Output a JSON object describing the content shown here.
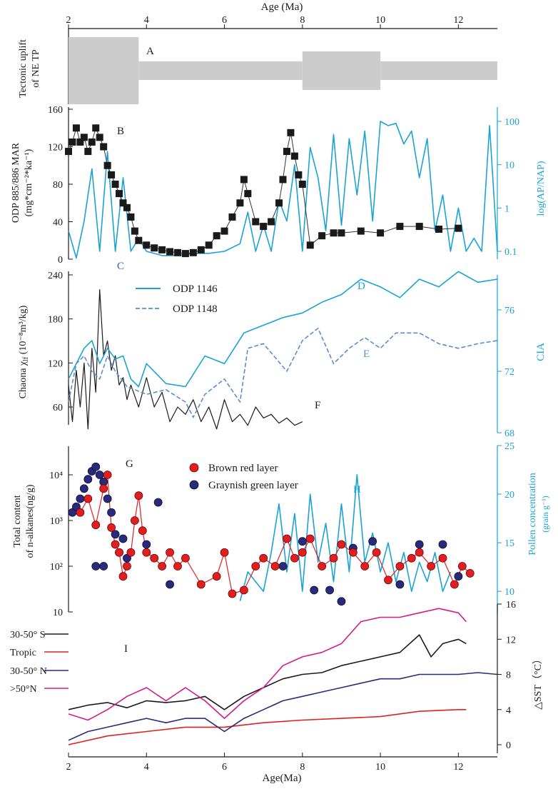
{
  "chart_data": [
    {
      "id": "A",
      "type": "area",
      "ylabel": "Tectonic uplift of NE TP",
      "top_axis": {
        "title": "Age (Ma)",
        "ticks": [
          2,
          4,
          6,
          8,
          10,
          12
        ]
      },
      "panel_label": "A",
      "blocks": [
        {
          "x0": 2.0,
          "x1": 3.8,
          "level": "high"
        },
        {
          "x0": 3.8,
          "x1": 8.0,
          "level": "low"
        },
        {
          "x0": 8.0,
          "x1": 10.0,
          "level": "mid"
        },
        {
          "x0": 10.0,
          "x1": 13.0,
          "level": "low"
        }
      ],
      "colors": {
        "fill": "#cccccc",
        "stroke": "#1a1a1a"
      }
    },
    {
      "id": "B",
      "type": "line",
      "ylabel_lines": [
        "ODP 885/886 MAR",
        "(mg*cm⁻²*ka⁻¹)"
      ],
      "yticks": [
        0,
        40,
        80,
        120,
        160
      ],
      "y2label": "log(AP/NAP)",
      "y2ticks": [
        "0.1",
        "1",
        "10",
        "100"
      ],
      "labels": {
        "B": "B",
        "C": "C"
      },
      "series": [
        {
          "name": "ODP 885/886 MAR",
          "color": "#1a1a1a",
          "marker": "square",
          "x": [
            2.0,
            2.1,
            2.2,
            2.3,
            2.4,
            2.5,
            2.6,
            2.7,
            2.8,
            2.9,
            3.0,
            3.1,
            3.2,
            3.3,
            3.4,
            3.5,
            3.6,
            3.7,
            3.8,
            4.0,
            4.2,
            4.4,
            4.6,
            4.8,
            5.0,
            5.2,
            5.4,
            5.6,
            5.8,
            6.0,
            6.2,
            6.4,
            6.5,
            6.6,
            6.8,
            7.0,
            7.2,
            7.4,
            7.5,
            7.6,
            7.7,
            7.8,
            7.9,
            8.0,
            8.2,
            8.5,
            8.8,
            9.0,
            9.5,
            10.0,
            10.5,
            11.0,
            11.5,
            12.0
          ],
          "values": [
            115,
            125,
            140,
            125,
            130,
            115,
            125,
            140,
            130,
            120,
            100,
            90,
            80,
            70,
            60,
            55,
            45,
            30,
            20,
            15,
            12,
            10,
            8,
            7,
            6,
            7,
            10,
            15,
            25,
            30,
            45,
            60,
            85,
            70,
            40,
            35,
            40,
            60,
            85,
            115,
            135,
            110,
            90,
            80,
            15,
            25,
            28,
            28,
            30,
            28,
            35,
            35,
            32,
            33
          ]
        },
        {
          "name": "log(AP/NAP)",
          "color": "#1aa3d4",
          "x": [
            2.0,
            2.2,
            2.4,
            2.6,
            2.8,
            3.0,
            3.2,
            3.4,
            3.6,
            3.8,
            4.0,
            4.4,
            4.8,
            5.2,
            5.6,
            6.0,
            6.4,
            6.6,
            6.8,
            7.0,
            7.2,
            7.4,
            7.6,
            7.8,
            8.0,
            8.2,
            8.4,
            8.6,
            8.8,
            9.0,
            9.2,
            9.4,
            9.6,
            9.8,
            10.0,
            10.2,
            10.4,
            10.6,
            10.8,
            11.0,
            11.2,
            11.4,
            11.6,
            11.8,
            12.0,
            12.2,
            12.4,
            12.6,
            12.8,
            13.0
          ],
          "values": [
            0.3,
            0.07,
            0.5,
            8,
            0.1,
            20,
            0.1,
            5,
            0.1,
            0.2,
            0.1,
            0.08,
            0.08,
            0.09,
            0.09,
            0.1,
            0.15,
            0.8,
            0.1,
            0.4,
            0.1,
            1.5,
            0.5,
            10,
            0.1,
            25,
            5,
            0.3,
            50,
            0.4,
            40,
            2,
            60,
            0.5,
            100,
            80,
            90,
            30,
            60,
            5,
            40,
            0.3,
            2,
            0.1,
            1,
            0.1,
            0.2,
            0.1,
            80,
            0.1
          ]
        }
      ]
    },
    {
      "id": "DEF",
      "type": "line",
      "ylabel": "Chaona χlf (10⁻⁸m³/kg)",
      "ylabel_main": "Chaona χ",
      "ylabel_sub": "lf",
      "ylabel_rest": " (10⁻⁸m³/kg)",
      "yticks": [
        60,
        120,
        180,
        240
      ],
      "y2label": "CIA",
      "y2ticks": [
        68,
        72,
        76
      ],
      "legend": [
        "ODP 1146",
        "ODP 1148"
      ],
      "labels": {
        "D": "D",
        "E": "E",
        "F": "F"
      },
      "series": [
        {
          "name": "ODP 1146",
          "color": "#1aa3d4",
          "axis": "right",
          "x": [
            2.0,
            2.2,
            2.4,
            2.6,
            2.8,
            3.0,
            3.2,
            3.4,
            3.6,
            3.8,
            4.0,
            4.5,
            5.0,
            5.5,
            6.0,
            6.5,
            7.0,
            7.5,
            8.0,
            8.5,
            9.0,
            9.5,
            10.0,
            10.5,
            11.0,
            11.5,
            12.0,
            12.5,
            13.0
          ],
          "values": [
            71.5,
            72.5,
            73.5,
            74.0,
            72.5,
            73.5,
            72.8,
            73.0,
            71.5,
            71.0,
            72.5,
            71.2,
            71.0,
            73.0,
            72.5,
            74.5,
            75.0,
            75.5,
            75.8,
            76.5,
            77.0,
            78.0,
            77.5,
            76.8,
            78.0,
            77.5,
            78.5,
            77.8,
            78.0
          ]
        },
        {
          "name": "ODP 1148",
          "color": "#5a8ecb",
          "axis": "right",
          "dash": true,
          "x": [
            2.0,
            2.2,
            2.4,
            2.6,
            2.8,
            3.0,
            3.2,
            3.5,
            4.0,
            4.5,
            5.0,
            5.2,
            5.5,
            6.0,
            6.4,
            6.6,
            7.0,
            7.6,
            8.0,
            8.4,
            8.8,
            9.2,
            9.6,
            10.0,
            10.4,
            11.0,
            11.5,
            12.0,
            12.5,
            13.0
          ],
          "values": [
            70.0,
            72.5,
            73.0,
            72.0,
            71.5,
            73.0,
            72.0,
            71.0,
            70.5,
            70.8,
            70.0,
            69.0,
            70.5,
            71.5,
            70.0,
            73.5,
            73.8,
            72.0,
            74.0,
            74.8,
            72.5,
            73.5,
            74.2,
            73.5,
            74.5,
            74.5,
            73.8,
            73.5,
            73.8,
            74.0
          ]
        },
        {
          "name": "Chaona χlf",
          "color": "#1a1a1a",
          "axis": "left",
          "x": [
            2.0,
            2.1,
            2.2,
            2.3,
            2.4,
            2.5,
            2.6,
            2.7,
            2.8,
            2.9,
            3.0,
            3.1,
            3.2,
            3.3,
            3.4,
            3.5,
            3.6,
            3.8,
            4.0,
            4.2,
            4.4,
            4.6,
            4.8,
            5.0,
            5.2,
            5.4,
            5.6,
            5.8,
            6.0,
            6.2,
            6.4,
            6.6,
            6.8,
            7.0,
            7.2,
            7.4,
            7.6,
            7.8,
            8.0
          ],
          "values": [
            90,
            40,
            110,
            60,
            120,
            30,
            140,
            80,
            220,
            130,
            150,
            110,
            130,
            90,
            100,
            70,
            90,
            60,
            100,
            60,
            80,
            40,
            60,
            50,
            70,
            40,
            60,
            30,
            70,
            40,
            50,
            35,
            60,
            45,
            50,
            38,
            45,
            35,
            40
          ]
        }
      ]
    },
    {
      "id": "GH",
      "type": "scatter",
      "ylabel_lines": [
        "Total content",
        "of n-alkanes(ng/g)"
      ],
      "yticks": [
        "10",
        "10²",
        "10³",
        "10⁴"
      ],
      "y2label_lines": [
        "Pollen concentration",
        "(grain g⁻¹)"
      ],
      "y2ticks": [
        10,
        15,
        20,
        25
      ],
      "legend": [
        "Brown red layer",
        "Graynish green layer"
      ],
      "labels": {
        "G": "G",
        "H": "H"
      },
      "series": [
        {
          "name": "Brown red layer",
          "color": "#e02020",
          "x": [
            2.3,
            2.5,
            2.7,
            2.9,
            3.0,
            3.1,
            3.2,
            3.3,
            3.4,
            3.5,
            3.6,
            3.7,
            3.8,
            3.9,
            4.0,
            4.2,
            4.4,
            4.6,
            4.8,
            5.0,
            5.4,
            5.8,
            6.0,
            6.2,
            6.5,
            6.8,
            7.0,
            7.3,
            7.6,
            7.8,
            8.0,
            8.2,
            8.5,
            8.8,
            9.0,
            9.3,
            9.6,
            9.9,
            10.2,
            10.5,
            10.8,
            11.0,
            11.3,
            11.6,
            11.9,
            12.1,
            12.3
          ],
          "values": [
            1500,
            3000,
            800,
            5000,
            10000,
            700,
            300,
            200,
            60,
            100,
            200,
            1000,
            3500,
            600,
            200,
            150,
            100,
            200,
            100,
            150,
            40,
            60,
            200,
            25,
            30,
            100,
            150,
            100,
            400,
            150,
            200,
            400,
            100,
            150,
            300,
            200,
            100,
            200,
            50,
            100,
            150,
            200,
            100,
            150,
            40,
            100,
            70
          ]
        },
        {
          "name": "Graynish green layer",
          "color": "#2a2a7a",
          "x": [
            2.1,
            2.2,
            2.3,
            2.4,
            2.5,
            2.6,
            2.7,
            2.8,
            2.9,
            3.0,
            3.1,
            3.2,
            3.3,
            3.4,
            3.5,
            2.7,
            2.9,
            4.0,
            4.3,
            4.6,
            7.5,
            8.0,
            8.3,
            8.7,
            9.0,
            9.3,
            9.8,
            10.5,
            11.0,
            11.6,
            12.0
          ],
          "values": [
            1500,
            2000,
            3000,
            5000,
            8000,
            12000,
            15000,
            10000,
            7000,
            3000,
            1500,
            500,
            200,
            400,
            150,
            100,
            100,
            300,
            2500,
            40,
            100,
            350,
            30,
            30,
            17,
            250,
            350,
            40,
            300,
            300,
            60
          ]
        },
        {
          "name": "Pollen concentration",
          "color": "#1aa3d4",
          "axis": "right",
          "x": [
            6.4,
            6.6,
            6.8,
            7.0,
            7.2,
            7.4,
            7.6,
            7.8,
            8.0,
            8.2,
            8.4,
            8.6,
            8.8,
            9.0,
            9.2,
            9.4,
            9.6,
            9.8,
            10.0,
            10.2,
            10.4,
            10.6,
            10.8,
            11.0,
            11.2,
            11.4,
            11.6,
            11.8
          ],
          "values": [
            9,
            12,
            11,
            10,
            14,
            19,
            12,
            18,
            10,
            20,
            13,
            17,
            11,
            19,
            12,
            22,
            13,
            16,
            12,
            15,
            11,
            14,
            10,
            13,
            11,
            14,
            10,
            12
          ]
        }
      ]
    },
    {
      "id": "I",
      "type": "line",
      "ylabel": "△SST（°C）",
      "yticks": [
        0,
        4,
        8,
        12,
        16
      ],
      "bottom_axis": {
        "title": "Age(Ma)",
        "ticks": [
          2,
          4,
          6,
          8,
          10,
          12
        ]
      },
      "legend": [
        "30-50° S",
        "Tropic",
        "30-50° N",
        ">50°N"
      ],
      "panel_label": "I",
      "series": [
        {
          "name": "30-50° S",
          "color": "#1a1a1a",
          "x": [
            2.0,
            2.5,
            3.0,
            3.5,
            4.0,
            4.5,
            5.0,
            5.5,
            6.0,
            6.5,
            7.0,
            7.5,
            8.0,
            8.5,
            9.0,
            9.5,
            10.0,
            10.5,
            11.0,
            11.3,
            11.6,
            12.0,
            12.2
          ],
          "values": [
            4.0,
            4.5,
            4.8,
            4.2,
            5.0,
            4.8,
            5.0,
            5.5,
            4.0,
            5.5,
            6.5,
            7.5,
            8.0,
            8.2,
            9.0,
            9.5,
            10.0,
            10.5,
            12.5,
            10.0,
            11.5,
            12.0,
            11.5
          ]
        },
        {
          "name": "Tropic",
          "color": "#e02020",
          "x": [
            2.0,
            3.0,
            4.0,
            5.0,
            6.0,
            7.0,
            8.0,
            9.0,
            10.0,
            11.0,
            12.0,
            12.2
          ],
          "values": [
            0.0,
            1.0,
            1.5,
            2.0,
            2.0,
            2.5,
            2.8,
            3.0,
            3.2,
            3.8,
            4.0,
            4.0
          ]
        },
        {
          "name": "30-50° N",
          "color": "#2a2a7a",
          "x": [
            2.0,
            2.5,
            3.0,
            3.5,
            4.0,
            4.5,
            5.0,
            5.5,
            6.0,
            6.5,
            7.0,
            7.5,
            8.0,
            8.5,
            9.0,
            9.5,
            10.0,
            10.5,
            11.0,
            11.5,
            12.0,
            12.5,
            13.0
          ],
          "values": [
            0.5,
            1.5,
            2.0,
            2.5,
            3.0,
            2.5,
            3.0,
            3.0,
            1.5,
            3.0,
            4.0,
            5.0,
            5.5,
            6.0,
            6.5,
            7.0,
            7.5,
            7.5,
            8.0,
            8.0,
            8.0,
            8.2,
            8.0
          ]
        },
        {
          "name": ">50°N",
          "color": "#d41b8c",
          "x": [
            2.0,
            2.5,
            3.0,
            3.5,
            4.0,
            4.5,
            5.0,
            5.5,
            6.0,
            6.5,
            7.0,
            7.5,
            8.0,
            8.5,
            9.0,
            9.5,
            10.0,
            10.5,
            11.0,
            11.5,
            12.0,
            12.2
          ],
          "values": [
            3.5,
            2.8,
            4.0,
            5.5,
            6.5,
            5.0,
            6.5,
            5.0,
            3.0,
            5.0,
            6.5,
            9.0,
            10.0,
            10.5,
            11.5,
            14.0,
            14.5,
            14.5,
            15.0,
            15.5,
            15.0,
            14.0
          ]
        }
      ]
    }
  ]
}
